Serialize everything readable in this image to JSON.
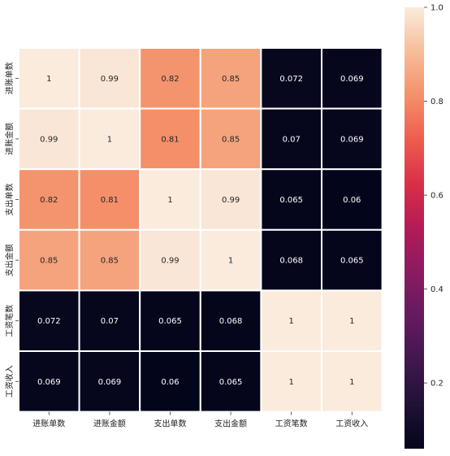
{
  "chart_data": {
    "type": "heatmap",
    "title": "",
    "xlabel": "",
    "ylabel": "",
    "rows": [
      "进账单数",
      "进账金额",
      "支出单数",
      "支出金额",
      "工资笔数",
      "工资收入"
    ],
    "columns": [
      "进账单数",
      "进账金额",
      "支出单数",
      "支出金额",
      "工资笔数",
      "工资收入"
    ],
    "values": [
      [
        1,
        0.99,
        0.82,
        0.85,
        0.072,
        0.069
      ],
      [
        0.99,
        1,
        0.81,
        0.85,
        0.07,
        0.069
      ],
      [
        0.82,
        0.81,
        1,
        0.99,
        0.065,
        0.06
      ],
      [
        0.85,
        0.85,
        0.99,
        1,
        0.068,
        0.065
      ],
      [
        0.072,
        0.07,
        0.065,
        0.068,
        1,
        1
      ],
      [
        0.069,
        0.069,
        0.06,
        0.065,
        1,
        1
      ]
    ],
    "annotations": [
      [
        "1",
        "0.99",
        "0.82",
        "0.85",
        "0.072",
        "0.069"
      ],
      [
        "0.99",
        "1",
        "0.81",
        "0.85",
        "0.07",
        "0.069"
      ],
      [
        "0.82",
        "0.81",
        "1",
        "0.99",
        "0.065",
        "0.06"
      ],
      [
        "0.85",
        "0.85",
        "0.99",
        "1",
        "0.068",
        "0.065"
      ],
      [
        "0.072",
        "0.07",
        "0.065",
        "0.068",
        "1",
        "1"
      ],
      [
        "0.069",
        "0.069",
        "0.06",
        "0.065",
        "1",
        "1"
      ]
    ],
    "colormap": "rocket",
    "colorbar": {
      "range": [
        0.06,
        1.0
      ],
      "ticks": [
        0.2,
        0.4,
        0.6,
        0.8,
        1.0
      ],
      "tick_labels": [
        "0.2",
        "0.4",
        "0.6",
        "0.8",
        "1.0"
      ]
    },
    "grid": true,
    "legend": "colorbar-right"
  }
}
